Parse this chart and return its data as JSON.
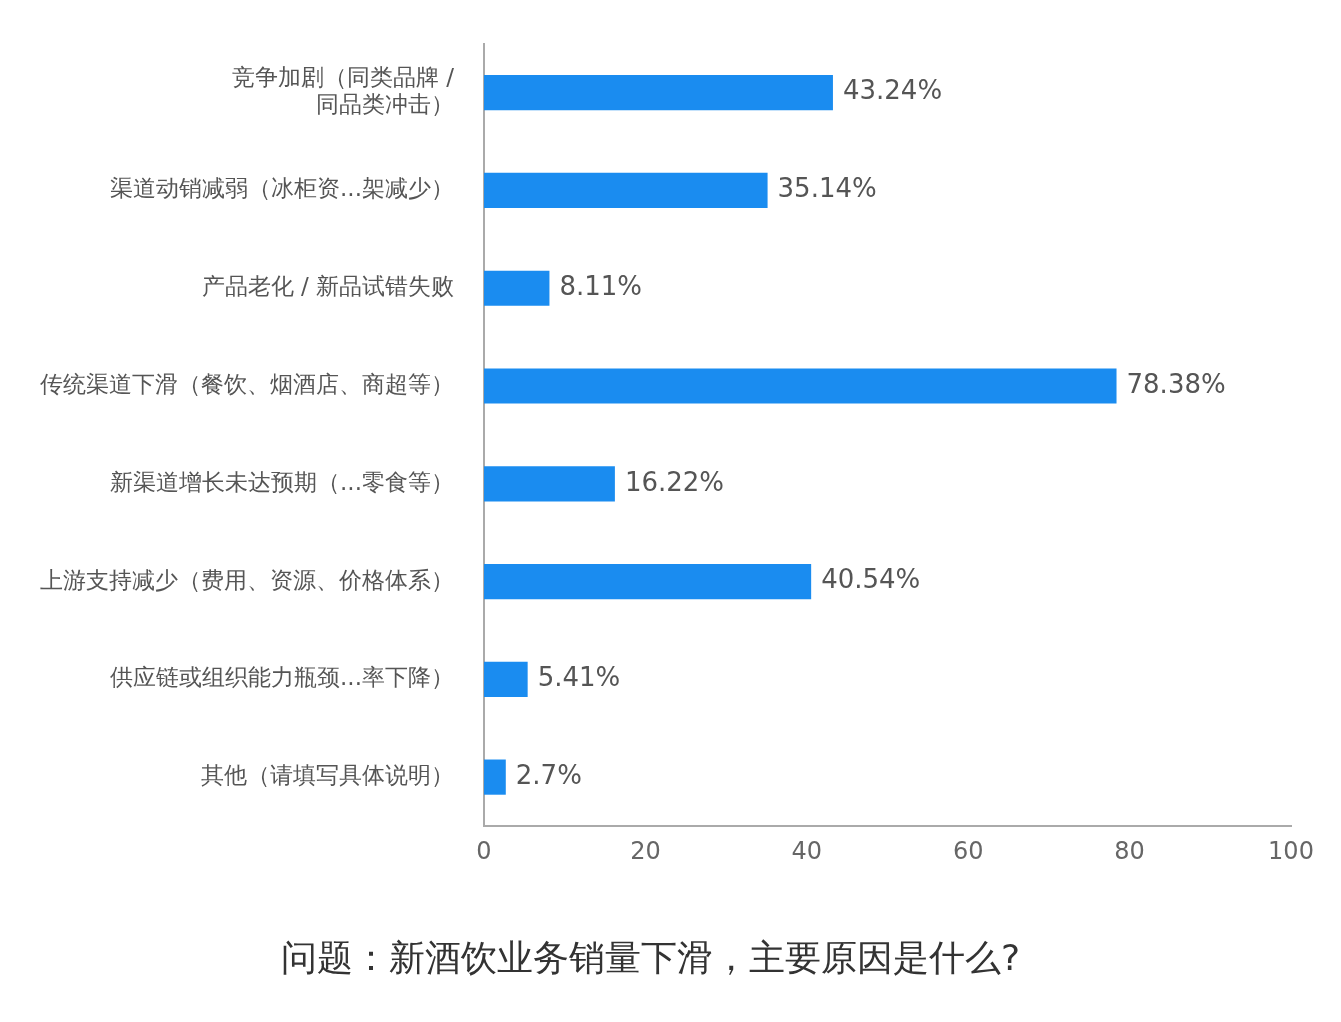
{
  "chart_data": {
    "type": "bar",
    "orientation": "horizontal",
    "title": "问题：新酒饮业务销量下滑，主要原因是什么?",
    "categories": [
      "竞争加剧（同类品牌 /\n同品类冲击）",
      "渠道动销减弱（冰柜资...架减少）",
      "产品老化 / 新品试错失败",
      "传统渠道下滑（餐饮、烟酒店、商超等）",
      "新渠道增长未达预期（...零食等）",
      "上游支持减少（费用、资源、价格体系）",
      "供应链或组织能力瓶颈...率下降）",
      "其他（请填写具体说明）"
    ],
    "values": [
      43.24,
      35.14,
      8.11,
      78.38,
      16.22,
      40.54,
      5.41,
      2.7
    ],
    "value_labels": [
      "43.24%",
      "35.14%",
      "8.11%",
      "78.38%",
      "16.22%",
      "40.54%",
      "5.41%",
      "2.7%"
    ],
    "color": "#1a8cf0",
    "xlim": [
      0,
      100
    ],
    "xticks": [
      0,
      20,
      40,
      60,
      80,
      100
    ],
    "grid": false,
    "legend": false
  }
}
